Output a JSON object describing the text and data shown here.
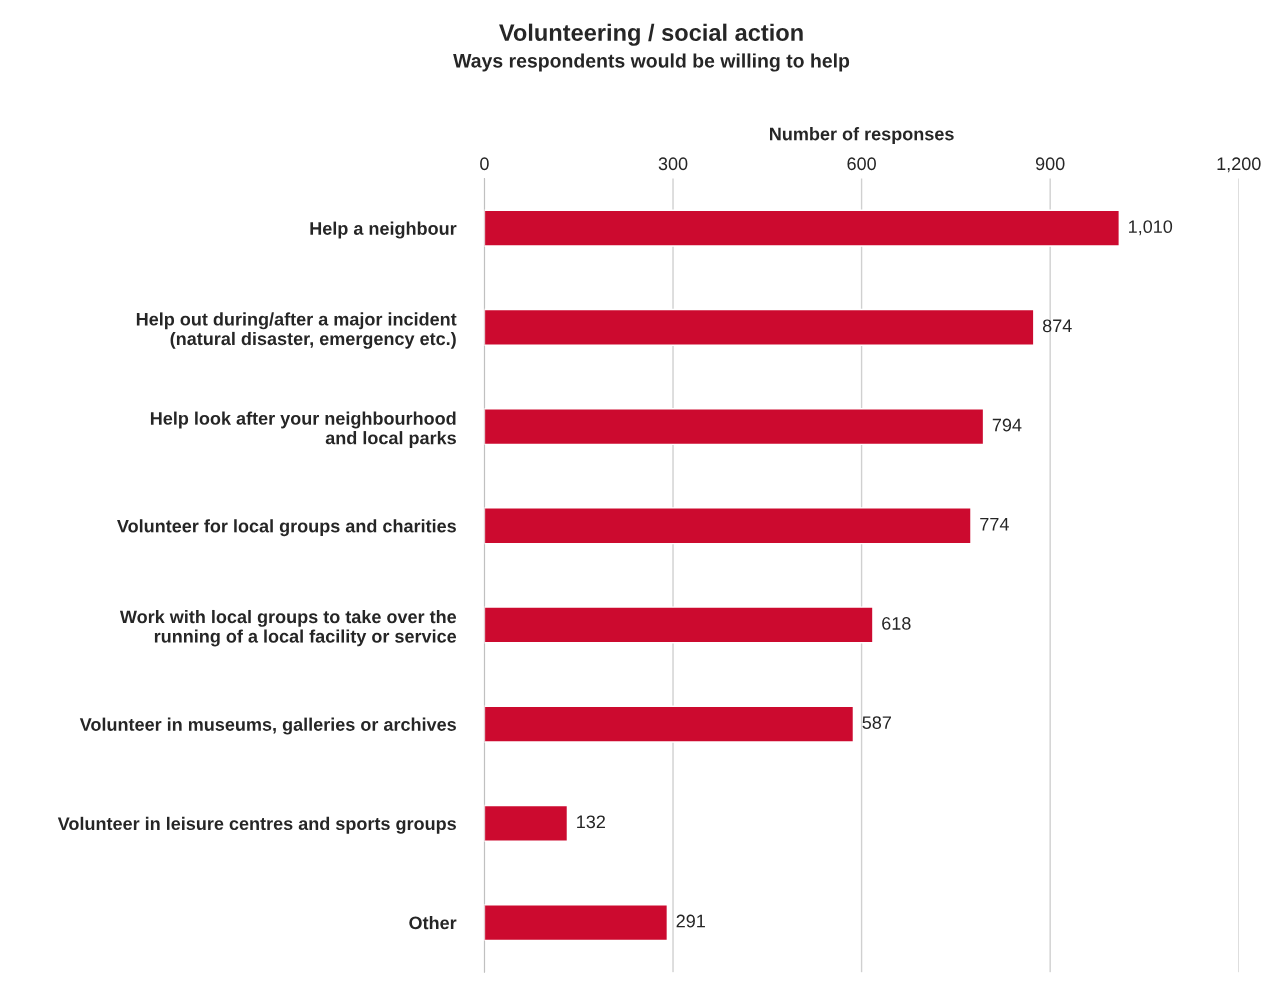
{
  "chart_data": {
    "type": "bar",
    "orientation": "horizontal",
    "title": "Volunteering / social action",
    "subtitle": "Ways respondents would be willing to help",
    "xlabel": "Number of responses",
    "categories": [
      "Help a neighbour",
      "Help out during/after a major incident\n(natural disaster, emergency etc.)",
      "Help look after your neighbourhood\nand local parks",
      "Volunteer for local groups and charities",
      "Work with local groups to take over the\nrunning of a local facility or service",
      "Volunteer in museums, galleries or archives",
      "Volunteer in leisure centres and sports groups",
      "Other"
    ],
    "values": [
      1010,
      874,
      794,
      774,
      618,
      587,
      132,
      291
    ],
    "value_labels": [
      "1,010",
      "874",
      "794",
      "774",
      "618",
      "587",
      "132",
      "291"
    ],
    "color": "#cc0a2f",
    "xlim": [
      0,
      1200
    ],
    "xticks": [
      0,
      300,
      600,
      900,
      {
        "value": 1200,
        "label": "1,200"
      }
    ],
    "grid": "x"
  }
}
